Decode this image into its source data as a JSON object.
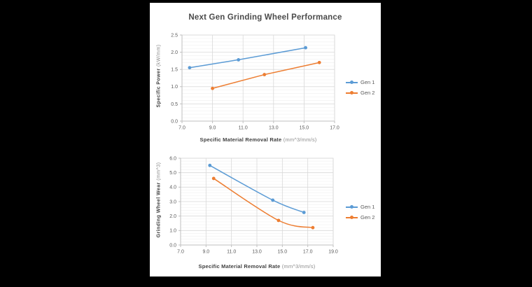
{
  "title": "Next Gen Grinding Wheel Performance",
  "colors": {
    "gen1": "#5B9BD5",
    "gen2": "#ED7D31",
    "major_gridline": "#D9D9D9",
    "minor_gridline": "#F2F2F2",
    "axis_line": "#BFBFBF",
    "tick_text": "#595959",
    "panel_background": "#FFFFFF",
    "page_background": "#000000"
  },
  "chart_data": [
    {
      "type": "line",
      "smooth": false,
      "grid": true,
      "legend_position": "right",
      "xlabel": "Specific Material Removal Rate",
      "xlabel_unit": "(mm^3/mm/s)",
      "ylabel": "Specific Power",
      "ylabel_unit": "(kW/mm)",
      "xlim": [
        7.0,
        17.0
      ],
      "ylim": [
        0.0,
        2.5
      ],
      "x_ticks": [
        7.0,
        9.0,
        11.0,
        13.0,
        15.0,
        17.0
      ],
      "y_ticks": [
        0.0,
        0.5,
        1.0,
        1.5,
        2.0,
        2.5
      ],
      "y_minor_step": 0.1,
      "series": [
        {
          "name": "Gen 1",
          "color_key": "gen1",
          "x": [
            7.5,
            10.7,
            15.1
          ],
          "y": [
            1.55,
            1.78,
            2.13
          ]
        },
        {
          "name": "Gen 2",
          "color_key": "gen2",
          "x": [
            9.0,
            12.4,
            16.0
          ],
          "y": [
            0.95,
            1.35,
            1.7
          ]
        }
      ]
    },
    {
      "type": "line",
      "smooth": true,
      "grid": true,
      "legend_position": "right",
      "xlabel": "Specific Material Removal Rate",
      "xlabel_unit": "(mm^3/mm/s)",
      "ylabel": "Grinding Wheel Wear",
      "ylabel_unit": "(mm^3)",
      "xlim": [
        7.0,
        19.0
      ],
      "ylim": [
        0.0,
        6.0
      ],
      "x_ticks": [
        7.0,
        9.0,
        11.0,
        13.0,
        15.0,
        17.0,
        19.0
      ],
      "y_ticks": [
        0.0,
        1.0,
        2.0,
        3.0,
        4.0,
        5.0,
        6.0
      ],
      "y_minor_step": 0.2,
      "series": [
        {
          "name": "Gen 1",
          "color_key": "gen1",
          "x": [
            9.3,
            14.25,
            16.7
          ],
          "y": [
            5.5,
            3.1,
            2.25
          ]
        },
        {
          "name": "Gen 2",
          "color_key": "gen2",
          "x": [
            9.6,
            14.7,
            17.4
          ],
          "y": [
            4.6,
            1.7,
            1.2
          ]
        }
      ]
    }
  ]
}
